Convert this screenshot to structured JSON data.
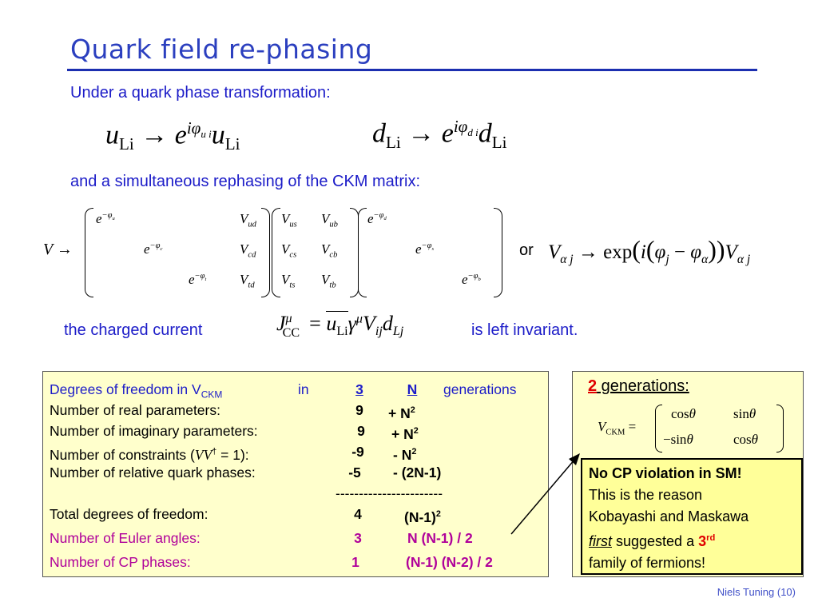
{
  "title": "Quark field re-phasing",
  "intro_text": "Under a quark phase transformation:",
  "rephasing_text": "and a simultaneous rephasing of the CKM matrix:",
  "or_text": "or",
  "charged_current_text": "the charged current",
  "invariant_text": "is left invariant.",
  "dof_table": {
    "header_label": "Degrees of freedom in V",
    "header_sub": "CKM",
    "header_in": "in",
    "header_3": "3",
    "header_n": "N",
    "header_generations": "generations",
    "rows": [
      {
        "label": "Number of real parameters:",
        "v3": "9",
        "vn": "+ N",
        "vn_sup": "2"
      },
      {
        "label": "Number of imaginary parameters:",
        "v3": "9",
        "vn": "+ N",
        "vn_sup": "2"
      },
      {
        "label": "Number of constraints (",
        "label_math": "VV",
        "label_dag": "†",
        "label_end": " = 1):",
        "v3": "-9",
        "vn": "- N",
        "vn_sup": "2"
      },
      {
        "label": "Number of relative quark phases:",
        "v3": "-5",
        "vn": "- (2N-1)",
        "vn_sup": ""
      }
    ],
    "separator": "-----------------------",
    "total": {
      "label": "Total degrees of freedom:",
      "v3": "4",
      "vn": "(N-1)",
      "vn_sup": "2"
    },
    "euler": {
      "label": "Number of Euler angles:",
      "v3": "3",
      "vn": "N (N-1) / 2"
    },
    "cp": {
      "label": "Number of CP phases:",
      "v3": "1",
      "vn": "(N-1) (N-2) / 2"
    }
  },
  "two_gen": {
    "number": "2",
    "label": " generations:"
  },
  "no_cp": {
    "line1": "No CP violation in SM!",
    "line2": "This is the reason",
    "line3": "Kobayashi and Maskawa",
    "first": "first",
    "line4_rest": " suggested a ",
    "three": "3",
    "rd": "rd",
    "line5": "family of fermions!"
  },
  "footer": "Niels Tuning (10)",
  "colors": {
    "title": "#2b3fbf",
    "text_blue": "#1c1cc8",
    "box_fill": "#ffffcc",
    "note_fill": "#ffff99",
    "purple": "#b0009a",
    "red": "#e00000"
  }
}
